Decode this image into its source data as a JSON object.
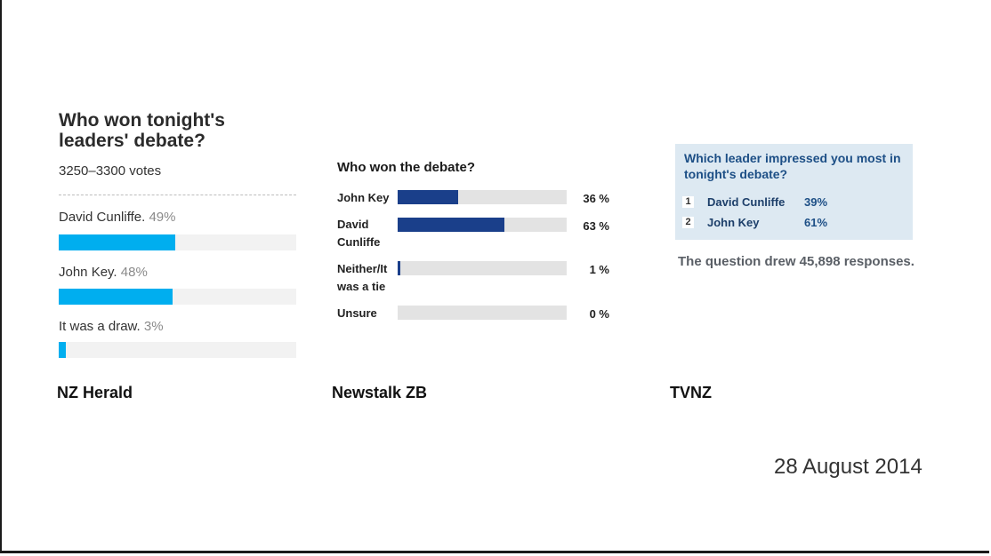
{
  "chart_data": [
    {
      "type": "bar",
      "source": "NZ Herald",
      "title": "Who won tonight's leaders' debate?",
      "subtitle": "3250–3300 votes",
      "categories": [
        "David Cunliffe.",
        "John Key.",
        "It was a draw."
      ],
      "value_labels": [
        "49%",
        "48%",
        "3%"
      ],
      "values": [
        49,
        48,
        3
      ],
      "bar_color": "#00aeef",
      "ylim": [
        0,
        100
      ]
    },
    {
      "type": "bar",
      "source": "Newstalk ZB",
      "title": "Who won the debate?",
      "categories": [
        "John Key",
        "David Cunliffe",
        "Neither/It was a tie",
        "Unsure"
      ],
      "value_labels": [
        "36 %",
        "63 %",
        "1 %",
        "0 %"
      ],
      "values": [
        36,
        63,
        1,
        0
      ],
      "bar_color": "#1a3f8a",
      "ylim": [
        0,
        100
      ]
    },
    {
      "type": "table",
      "source": "TVNZ",
      "title": "Which leader impressed you most in tonight's debate?",
      "rows": [
        {
          "rank": "1",
          "name": "David Cunliffe",
          "value_label": "39%",
          "value": 39
        },
        {
          "rank": "2",
          "name": "John Key",
          "value_label": "61%",
          "value": 61
        }
      ],
      "note": "The question drew 45,898 responses."
    }
  ],
  "date": "28 August 2014"
}
